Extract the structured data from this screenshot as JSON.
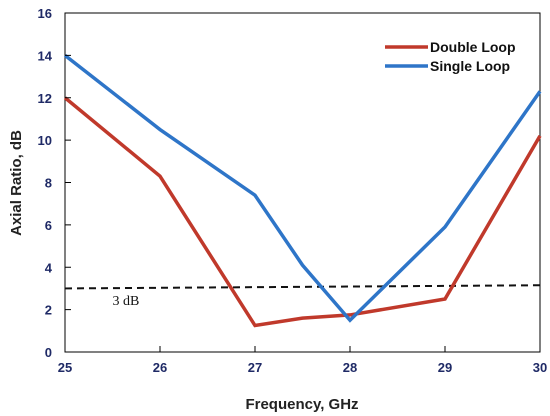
{
  "chart_data": {
    "type": "line",
    "xlabel": "Frequency, GHz",
    "ylabel": "Axial Ratio, dB",
    "xlim": [
      25,
      30
    ],
    "ylim": [
      0,
      16
    ],
    "x_ticks": [
      25,
      26,
      27,
      28,
      29,
      30
    ],
    "y_ticks": [
      0,
      2,
      4,
      6,
      8,
      10,
      12,
      14,
      16
    ],
    "grid": false,
    "legend_position": "top-right",
    "series": [
      {
        "name": "Double Loop",
        "color": "#c0392b",
        "x": [
          25,
          26,
          27,
          27.5,
          28,
          29,
          30
        ],
        "y": [
          12.0,
          8.3,
          1.25,
          1.6,
          1.75,
          2.5,
          10.2
        ]
      },
      {
        "name": "Single Loop",
        "color": "#2e75c8",
        "x": [
          25,
          26,
          27,
          27.5,
          28,
          29,
          30
        ],
        "y": [
          14.0,
          10.5,
          7.4,
          4.1,
          1.5,
          5.9,
          12.3
        ]
      }
    ],
    "reference_line": {
      "label": "3 dB",
      "x": [
        25,
        30
      ],
      "y": [
        3.0,
        3.15
      ],
      "color": "#111111"
    }
  }
}
